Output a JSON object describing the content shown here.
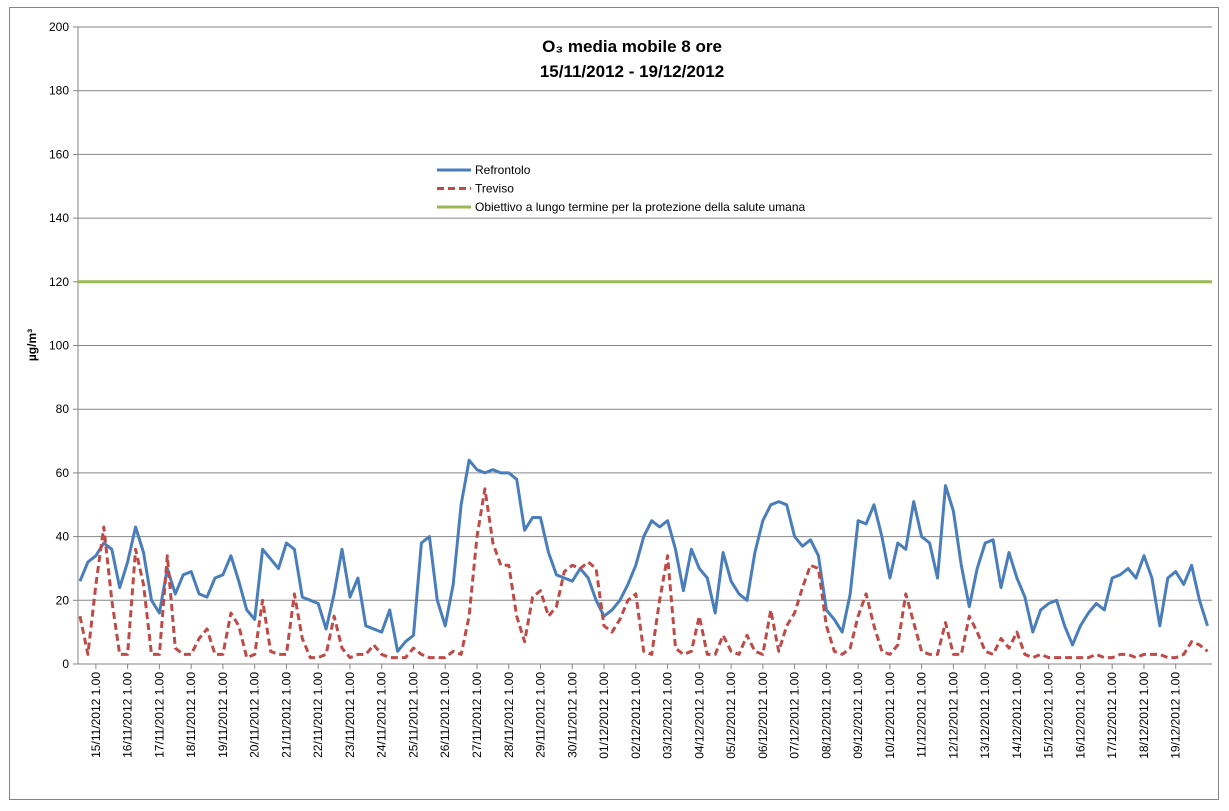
{
  "chart_data": {
    "type": "line",
    "title": "O₃ media mobile 8 ore",
    "subtitle": "15/11/2012 - 19/12/2012",
    "y_label": "µg/m³",
    "legend": "upper center",
    "grid": true,
    "ylim": [
      0,
      200
    ],
    "yticks": [
      0,
      20,
      40,
      60,
      80,
      100,
      120,
      140,
      160,
      180,
      200
    ],
    "categories": [
      null,
      null,
      "15/11/2012 1.00",
      null,
      null,
      null,
      "16/11/2012 1.00",
      null,
      null,
      null,
      "17/11/2012 1.00",
      null,
      null,
      null,
      "18/11/2012 1.00",
      null,
      null,
      null,
      "19/11/2012 1.00",
      null,
      null,
      null,
      "20/11/2012 1.00",
      null,
      null,
      null,
      "21/11/2012 1.00",
      null,
      null,
      null,
      "22/11/2012 1.00",
      null,
      null,
      null,
      "23/11/2012 1.00",
      null,
      null,
      null,
      "24/11/2012 1.00",
      null,
      null,
      null,
      "25/11/2012 1.00",
      null,
      null,
      null,
      "26/11/2012 1.00",
      null,
      null,
      null,
      "27/11/2012 1.00",
      null,
      null,
      null,
      "28/11/2012 1.00",
      null,
      null,
      null,
      "29/11/2012 1.00",
      null,
      null,
      null,
      "30/11/2012 1.00",
      null,
      null,
      null,
      "01/12/2012 1.00",
      null,
      null,
      null,
      "02/12/2012 1.00",
      null,
      null,
      null,
      "03/12/2012 1.00",
      null,
      null,
      null,
      "04/12/2012 1.00",
      null,
      null,
      null,
      "05/12/2012 1.00",
      null,
      null,
      null,
      "06/12/2012 1.00",
      null,
      null,
      null,
      "07/12/2012 1.00",
      null,
      null,
      null,
      "08/12/2012 1.00",
      null,
      null,
      null,
      "09/12/2012 1.00",
      null,
      null,
      null,
      "10/12/2012 1.00",
      null,
      null,
      null,
      "11/12/2012 1.00",
      null,
      null,
      null,
      "12/12/2012 1.00",
      null,
      null,
      null,
      "13/12/2012 1.00",
      null,
      null,
      null,
      "14/12/2012 1.00",
      null,
      null,
      null,
      "15/12/2012 1.00",
      null,
      null,
      null,
      "16/12/2012 1.00",
      null,
      null,
      null,
      "17/12/2012 1.00",
      null,
      null,
      null,
      "18/12/2012 1.00",
      null,
      null,
      null,
      "19/12/2012 1.00",
      null,
      null,
      null,
      null
    ],
    "series": [
      {
        "name": "Refrontolo",
        "color": "#4a7ebb",
        "dash": false,
        "values": [
          26,
          32,
          34,
          38,
          36,
          24,
          32,
          43,
          35,
          20,
          16,
          30,
          22,
          28,
          29,
          22,
          21,
          27,
          28,
          34,
          26,
          17,
          14,
          36,
          33,
          30,
          38,
          36,
          21,
          20,
          19,
          11,
          22,
          36,
          21,
          27,
          12,
          11,
          10,
          17,
          4,
          7,
          9,
          38,
          40,
          20,
          12,
          25,
          50,
          64,
          61,
          60,
          61,
          60,
          60,
          58,
          42,
          46,
          46,
          35,
          28,
          27,
          26,
          30,
          27,
          20,
          15,
          17,
          20,
          25,
          31,
          40,
          45,
          43,
          45,
          36,
          23,
          36,
          30,
          27,
          16,
          35,
          26,
          22,
          20,
          35,
          45,
          50,
          51,
          50,
          40,
          37,
          39,
          34,
          17,
          14,
          10,
          22,
          45,
          44,
          50,
          40,
          27,
          38,
          36,
          51,
          40,
          38,
          27,
          56,
          48,
          31,
          18,
          30,
          38,
          39,
          24,
          35,
          27,
          21,
          10,
          17,
          19,
          20,
          12,
          6,
          12,
          16,
          19,
          17,
          27,
          28,
          30,
          27,
          34,
          27,
          12,
          27,
          29,
          25,
          31,
          20,
          12
        ]
      },
      {
        "name": "Treviso",
        "color": "#be4b48",
        "dash": true,
        "values": [
          15,
          3,
          25,
          43,
          20,
          3,
          3,
          36,
          25,
          3,
          3,
          34,
          5,
          3,
          3,
          8,
          11,
          3,
          3,
          16,
          12,
          2,
          3,
          20,
          4,
          3,
          3,
          22,
          8,
          2,
          2,
          3,
          15,
          5,
          2,
          3,
          3,
          6,
          3,
          2,
          2,
          2,
          5,
          3,
          2,
          2,
          2,
          4,
          3,
          15,
          40,
          55,
          38,
          31,
          31,
          15,
          7,
          21,
          23,
          15,
          18,
          29,
          31,
          30,
          32,
          30,
          12,
          10,
          14,
          20,
          22,
          4,
          3,
          20,
          34,
          5,
          3,
          4,
          15,
          3,
          3,
          9,
          4,
          3,
          9,
          4,
          3,
          17,
          4,
          12,
          16,
          24,
          31,
          30,
          12,
          4,
          3,
          5,
          15,
          22,
          12,
          4,
          3,
          6,
          22,
          13,
          4,
          3,
          3,
          13,
          3,
          3,
          15,
          10,
          4,
          3,
          8,
          5,
          10,
          3,
          2,
          3,
          2,
          2,
          2,
          2,
          2,
          2,
          3,
          2,
          2,
          3,
          3,
          2,
          3,
          3,
          3,
          2,
          2,
          3,
          7,
          6,
          4
        ]
      }
    ],
    "reference_line": {
      "name": "Obiettivo a lungo termine per la protezione della salute umana",
      "value": 120,
      "color": "#98b954"
    }
  }
}
